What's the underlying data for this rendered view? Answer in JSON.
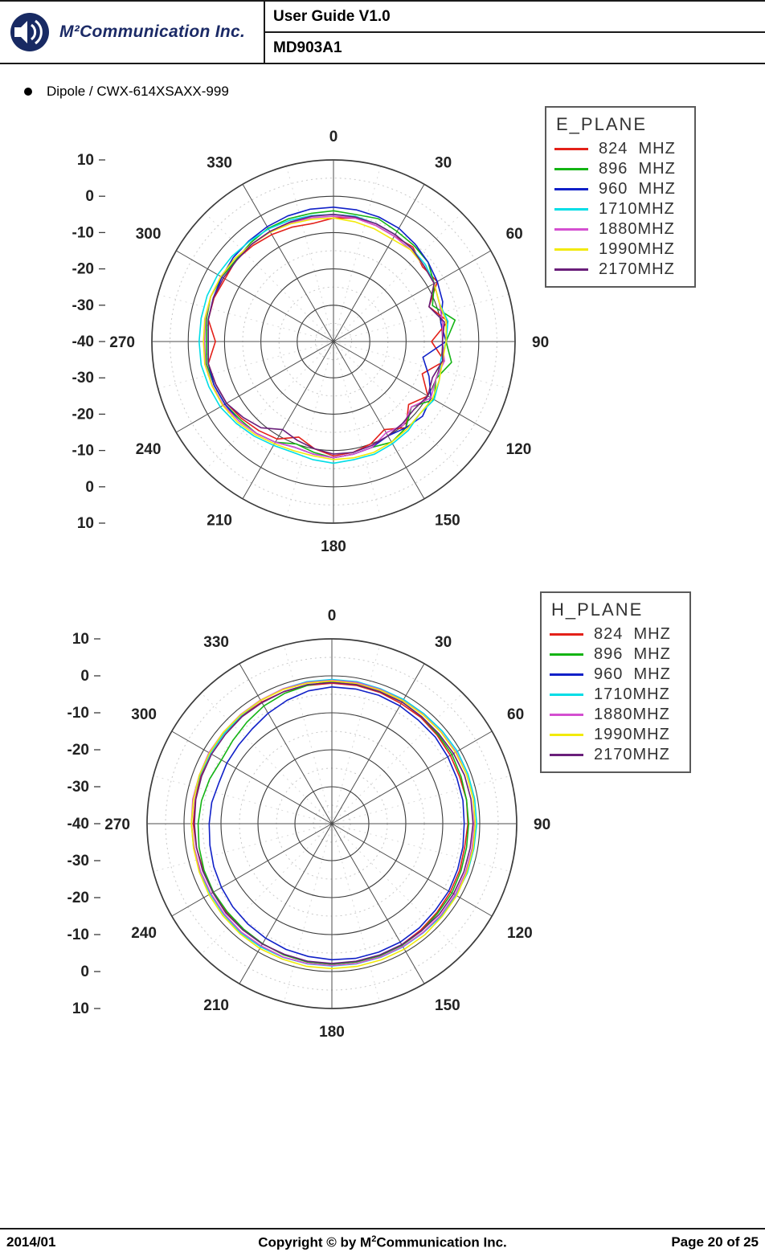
{
  "header": {
    "logo_text": "M²Communication Inc.",
    "title": "User Guide V1.0",
    "subtitle": "MD903A1"
  },
  "icons": {
    "logo": "speaker-sound-waves-icon",
    "bullet": "bullet-dot-icon"
  },
  "bullet_item": "Dipole / CWX-614XSAXX-999",
  "footer": {
    "date": "2014/01",
    "copyright_prefix": "Copyright © by M",
    "copyright_sup": "2",
    "copyright_suffix": "Communication Inc.",
    "page": "Page 20 of 25"
  },
  "chart_data": [
    {
      "type": "line",
      "subtype": "polar",
      "title": "E_PLANE",
      "legend_position": "top-right",
      "grid": true,
      "rlim": [
        -40,
        10
      ],
      "radial_tick_step": 10,
      "angle_ticks": [
        0,
        30,
        60,
        90,
        120,
        150,
        180,
        210,
        240,
        270,
        300,
        330
      ],
      "radial_labels": [
        "10",
        "0",
        "-10",
        "-20",
        "-30",
        "-40",
        "-30",
        "-20",
        "-10",
        "0",
        "10"
      ],
      "angles_deg": [
        0,
        10,
        20,
        30,
        40,
        50,
        60,
        70,
        80,
        90,
        100,
        110,
        120,
        130,
        140,
        150,
        160,
        170,
        180,
        190,
        200,
        210,
        220,
        230,
        240,
        250,
        260,
        270,
        280,
        290,
        300,
        310,
        320,
        330,
        340,
        350
      ],
      "series": [
        {
          "name": "824  MHZ",
          "color": "#e32119",
          "values": [
            -6.0,
            -5.5,
            -6.0,
            -6.5,
            -6.0,
            -8.0,
            -7.0,
            -12.0,
            -8.0,
            -13.0,
            -9.0,
            -14.0,
            -10.0,
            -13.0,
            -9.0,
            -12.0,
            -10.0,
            -9.0,
            -8.5,
            -10.0,
            -12.0,
            -9.0,
            -8.0,
            -7.0,
            -6.0,
            -5.5,
            -5.0,
            -7.5,
            -5.0,
            -5.0,
            -5.5,
            -5.0,
            -5.5,
            -6.0,
            -6.5,
            -7.0
          ]
        },
        {
          "name": "896  MHZ",
          "color": "#14b414",
          "values": [
            -4.0,
            -4.5,
            -4.0,
            -5.0,
            -5.5,
            -6.0,
            -8.0,
            -11.0,
            -6.0,
            -9.0,
            -7.0,
            -10.0,
            -8.0,
            -12.0,
            -9.0,
            -8.0,
            -9.0,
            -8.5,
            -8.0,
            -9.0,
            -10.0,
            -8.0,
            -7.0,
            -6.5,
            -5.5,
            -5.0,
            -4.5,
            -5.0,
            -4.5,
            -4.0,
            -4.5,
            -5.0,
            -4.5,
            -4.0,
            -4.0,
            -4.2
          ]
        },
        {
          "name": "960  MHZ",
          "color": "#1020c8",
          "values": [
            -3.0,
            -3.2,
            -3.5,
            -4.0,
            -5.0,
            -6.0,
            -7.0,
            -8.0,
            -10.0,
            -9.0,
            -15.0,
            -12.0,
            -9.0,
            -8.0,
            -9.0,
            -10.0,
            -9.0,
            -8.5,
            -8.0,
            -8.5,
            -9.0,
            -8.0,
            -7.0,
            -6.0,
            -5.5,
            -5.0,
            -5.0,
            -5.5,
            -5.0,
            -4.8,
            -4.5,
            -4.0,
            -3.8,
            -3.5,
            -3.2,
            -3.0
          ]
        },
        {
          "name": "1710MHZ",
          "color": "#00dde6",
          "values": [
            -5.0,
            -5.0,
            -5.5,
            -6.0,
            -6.5,
            -7.0,
            -8.0,
            -9.0,
            -8.0,
            -9.0,
            -10.0,
            -9.0,
            -8.0,
            -9.0,
            -8.0,
            -7.5,
            -7.0,
            -7.0,
            -6.5,
            -7.0,
            -7.5,
            -7.0,
            -6.0,
            -5.0,
            -4.0,
            -3.5,
            -3.0,
            -3.0,
            -3.0,
            -3.0,
            -3.2,
            -3.5,
            -4.0,
            -4.2,
            -4.5,
            -4.8
          ]
        },
        {
          "name": "1880MHZ",
          "color": "#d44fd0",
          "values": [
            -5.5,
            -5.5,
            -6.0,
            -6.5,
            -7.0,
            -7.5,
            -8.0,
            -9.0,
            -9.5,
            -10.0,
            -9.0,
            -10.0,
            -9.0,
            -12.0,
            -10.0,
            -11.0,
            -9.0,
            -8.5,
            -8.0,
            -8.5,
            -9.0,
            -8.0,
            -7.0,
            -6.0,
            -5.0,
            -4.5,
            -4.2,
            -4.5,
            -4.2,
            -4.0,
            -4.2,
            -4.5,
            -5.0,
            -5.0,
            -5.2,
            -5.4
          ]
        },
        {
          "name": "1990MHZ",
          "color": "#f2ea0a",
          "values": [
            -6.0,
            -6.5,
            -7.0,
            -7.5,
            -7.0,
            -7.5,
            -8.0,
            -9.0,
            -8.5,
            -9.0,
            -9.5,
            -9.0,
            -8.5,
            -9.0,
            -8.5,
            -8.0,
            -7.5,
            -7.5,
            -7.5,
            -8.0,
            -8.0,
            -7.5,
            -6.5,
            -5.5,
            -4.8,
            -4.4,
            -4.0,
            -4.2,
            -4.0,
            -4.0,
            -4.2,
            -4.5,
            -5.0,
            -5.2,
            -5.5,
            -5.8
          ]
        },
        {
          "name": "2170MHZ",
          "color": "#6a1f7a",
          "values": [
            -5.0,
            -5.2,
            -5.5,
            -6.0,
            -6.5,
            -7.5,
            -8.0,
            -12.0,
            -9.0,
            -10.0,
            -9.5,
            -11.0,
            -10.0,
            -11.0,
            -10.5,
            -10.0,
            -9.5,
            -9.0,
            -9.0,
            -10.0,
            -11.0,
            -12.0,
            -9.0,
            -7.5,
            -6.0,
            -5.5,
            -5.0,
            -5.5,
            -5.0,
            -4.8,
            -5.0,
            -5.2,
            -5.0,
            -5.0,
            -5.0,
            -5.0
          ]
        }
      ]
    },
    {
      "type": "line",
      "subtype": "polar",
      "title": "H_PLANE",
      "legend_position": "top-right",
      "grid": true,
      "rlim": [
        -40,
        10
      ],
      "radial_tick_step": 10,
      "angle_ticks": [
        0,
        30,
        60,
        90,
        120,
        150,
        180,
        210,
        240,
        270,
        300,
        330
      ],
      "radial_labels": [
        "10",
        "0",
        "-10",
        "-20",
        "-30",
        "-40",
        "-30",
        "-20",
        "-10",
        "0",
        "10"
      ],
      "angles_deg": [
        0,
        10,
        20,
        30,
        40,
        50,
        60,
        70,
        80,
        90,
        100,
        110,
        120,
        130,
        140,
        150,
        160,
        170,
        180,
        190,
        200,
        210,
        220,
        230,
        240,
        250,
        260,
        270,
        280,
        290,
        300,
        310,
        320,
        330,
        340,
        350
      ],
      "series": [
        {
          "name": "824  MHZ",
          "color": "#e32119",
          "values": [
            -2.0,
            -2.0,
            -2.2,
            -2.5,
            -2.5,
            -2.8,
            -3.0,
            -3.2,
            -3.0,
            -3.2,
            -3.5,
            -3.2,
            -3.0,
            -2.8,
            -2.5,
            -2.2,
            -2.0,
            -2.0,
            -2.0,
            -2.0,
            -2.2,
            -2.5,
            -2.5,
            -2.8,
            -3.0,
            -3.0,
            -2.8,
            -2.5,
            -2.5,
            -2.2,
            -2.0,
            -2.0,
            -2.0,
            -2.0,
            -2.0,
            -2.0
          ]
        },
        {
          "name": "896  MHZ",
          "color": "#14b414",
          "values": [
            -1.5,
            -1.8,
            -2.0,
            -2.0,
            -2.2,
            -2.5,
            -2.5,
            -2.8,
            -3.0,
            -3.0,
            -3.0,
            -2.8,
            -2.5,
            -2.5,
            -2.2,
            -2.0,
            -2.0,
            -2.0,
            -2.0,
            -2.0,
            -2.2,
            -2.5,
            -2.8,
            -3.0,
            -3.0,
            -3.2,
            -3.5,
            -3.8,
            -4.2,
            -4.8,
            -5.5,
            -5.0,
            -4.2,
            -3.2,
            -2.5,
            -2.0
          ]
        },
        {
          "name": "960  MHZ",
          "color": "#1020c8",
          "values": [
            -3.0,
            -3.0,
            -3.0,
            -3.2,
            -3.5,
            -3.5,
            -3.8,
            -4.0,
            -4.0,
            -4.2,
            -4.0,
            -3.8,
            -3.5,
            -3.5,
            -3.2,
            -3.0,
            -3.0,
            -3.0,
            -3.2,
            -3.5,
            -3.8,
            -4.2,
            -4.6,
            -5.0,
            -5.5,
            -6.0,
            -6.5,
            -6.8,
            -7.0,
            -7.5,
            -7.2,
            -7.0,
            -6.5,
            -5.5,
            -4.5,
            -3.5
          ]
        },
        {
          "name": "1710MHZ",
          "color": "#00dde6",
          "values": [
            -1.0,
            -1.0,
            -1.2,
            -1.2,
            -1.2,
            -1.0,
            -0.8,
            -0.8,
            -0.8,
            -0.8,
            -1.0,
            -1.0,
            -1.2,
            -1.2,
            -1.5,
            -1.5,
            -1.5,
            -1.5,
            -1.5,
            -1.5,
            -1.5,
            -1.5,
            -1.5,
            -1.8,
            -2.0,
            -2.0,
            -2.0,
            -2.0,
            -2.0,
            -2.0,
            -2.0,
            -2.0,
            -1.8,
            -1.5,
            -1.2,
            -1.0
          ]
        },
        {
          "name": "1880MHZ",
          "color": "#d44fd0",
          "values": [
            -1.2,
            -1.2,
            -1.4,
            -1.5,
            -1.5,
            -1.4,
            -1.2,
            -1.2,
            -1.2,
            -1.4,
            -1.5,
            -1.5,
            -1.5,
            -1.5,
            -1.6,
            -1.6,
            -1.6,
            -1.6,
            -1.6,
            -1.6,
            -1.6,
            -1.8,
            -1.8,
            -2.0,
            -2.2,
            -2.2,
            -2.2,
            -2.0,
            -1.8,
            -1.8,
            -1.6,
            -1.6,
            -1.5,
            -1.4,
            -1.2,
            -1.2
          ]
        },
        {
          "name": "1990MHZ",
          "color": "#f2ea0a",
          "values": [
            -1.4,
            -1.5,
            -1.6,
            -1.6,
            -1.6,
            -1.5,
            -1.4,
            -1.2,
            -1.2,
            -1.2,
            -1.2,
            -1.2,
            -1.0,
            -1.0,
            -0.8,
            -0.8,
            -0.8,
            -0.8,
            -0.8,
            -0.8,
            -1.0,
            -1.0,
            -1.2,
            -1.4,
            -1.6,
            -1.8,
            -2.0,
            -2.0,
            -2.0,
            -1.8,
            -1.8,
            -1.6,
            -1.6,
            -1.5,
            -1.4,
            -1.4
          ]
        },
        {
          "name": "2170MHZ",
          "color": "#6a1f7a",
          "values": [
            -1.8,
            -1.8,
            -2.0,
            -2.0,
            -2.2,
            -2.2,
            -2.0,
            -1.8,
            -1.8,
            -1.8,
            -2.0,
            -2.0,
            -2.0,
            -2.0,
            -2.2,
            -2.2,
            -2.2,
            -2.2,
            -2.2,
            -2.2,
            -2.4,
            -2.4,
            -2.5,
            -2.5,
            -2.8,
            -2.8,
            -2.8,
            -2.8,
            -2.6,
            -2.5,
            -2.4,
            -2.4,
            -2.2,
            -2.2,
            -2.0,
            -1.8
          ]
        }
      ]
    }
  ]
}
